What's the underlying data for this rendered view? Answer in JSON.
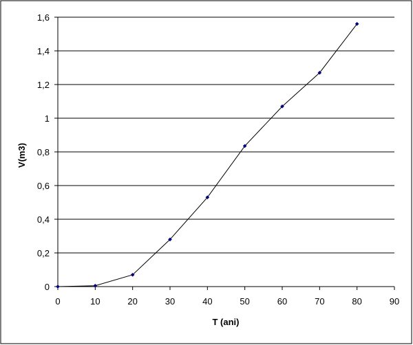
{
  "chart_data": {
    "type": "line",
    "title": "",
    "xlabel": "T (ani)",
    "ylabel": "V(m3)",
    "xlim": [
      0,
      90
    ],
    "ylim": [
      0,
      1.6
    ],
    "x_ticks": [
      0,
      10,
      20,
      30,
      40,
      50,
      60,
      70,
      80,
      90
    ],
    "x_tick_labels": [
      "0",
      "10",
      "20",
      "30",
      "40",
      "50",
      "60",
      "70",
      "80",
      "90"
    ],
    "y_ticks": [
      0,
      0.2,
      0.4,
      0.6,
      0.8,
      1.0,
      1.2,
      1.4,
      1.6
    ],
    "y_tick_labels": [
      "0",
      "0,2",
      "0,4",
      "0,6",
      "0,8",
      "1",
      "1,2",
      "1,4",
      "1,6"
    ],
    "grid": "horizontal",
    "legend": "none",
    "series": [
      {
        "x": [
          0,
          10,
          20,
          30,
          40,
          50,
          60,
          70,
          80
        ],
        "values": [
          0,
          0.005,
          0.07,
          0.28,
          0.53,
          0.835,
          1.07,
          1.27,
          1.56
        ]
      }
    ],
    "colors": {
      "line": "#000000",
      "marker": "#000080",
      "grid": "#000000",
      "frame": "#000000"
    }
  }
}
